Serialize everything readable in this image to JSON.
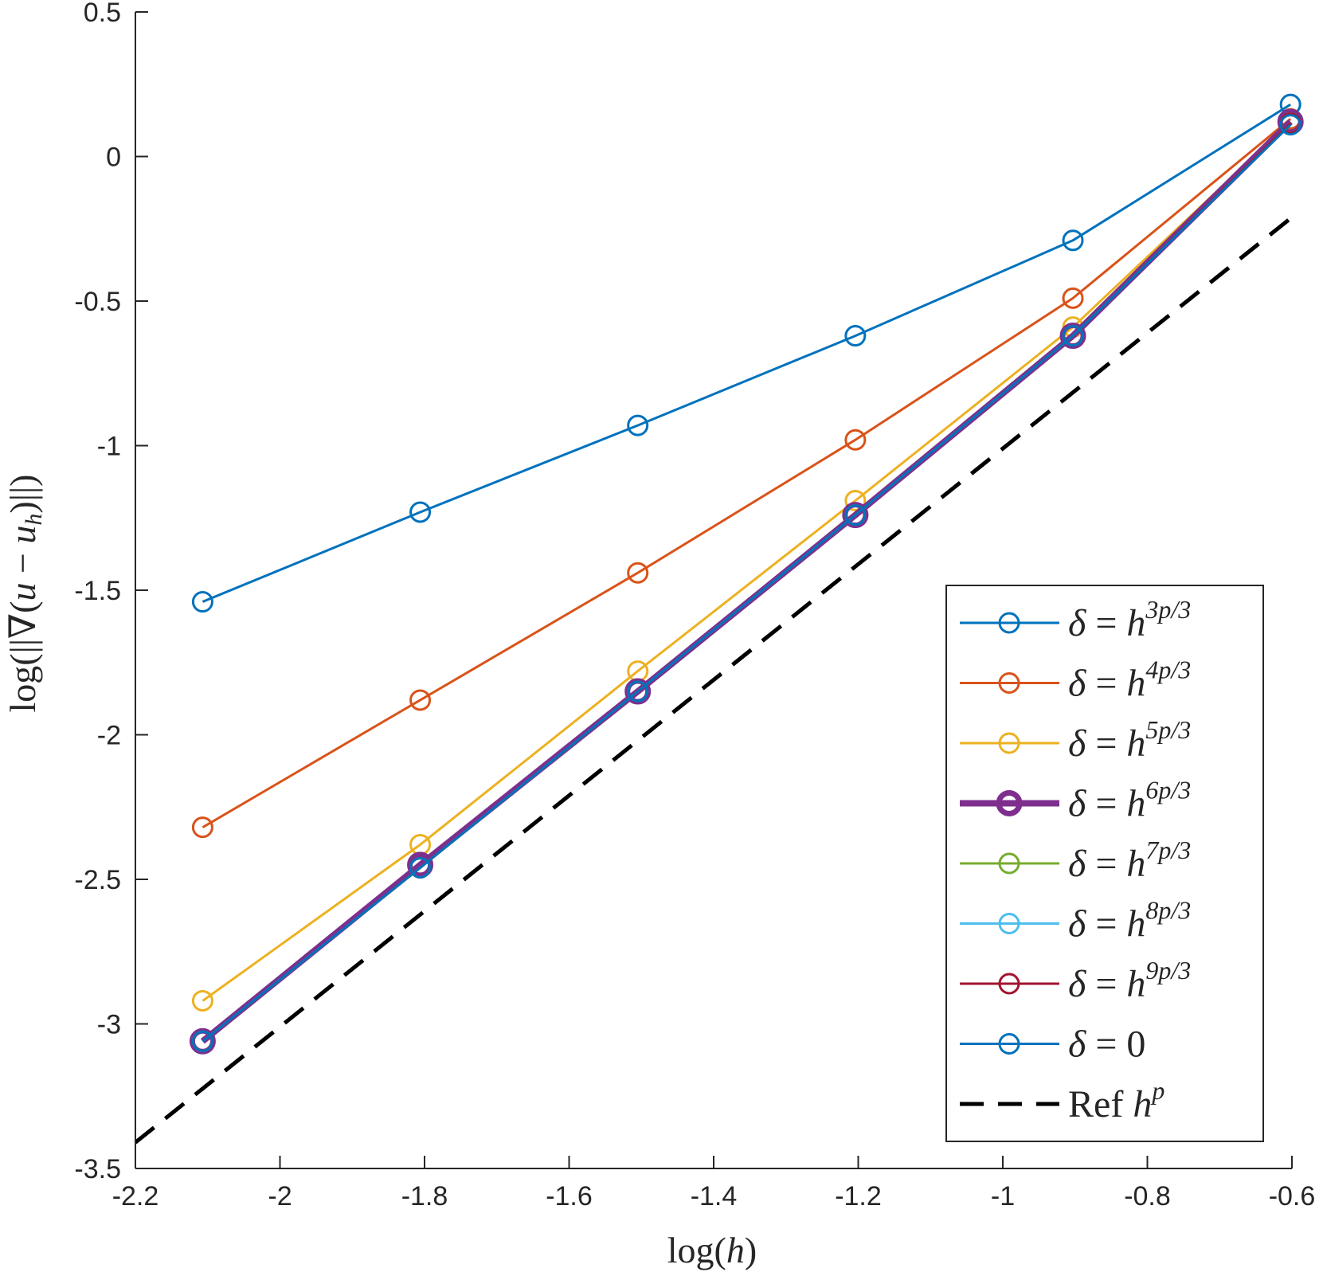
{
  "chart_data": {
    "type": "line",
    "xlabel": "log(h)",
    "ylabel": "log(||∇(u − u_h)||)",
    "xlim": [
      -2.2,
      -0.6
    ],
    "ylim": [
      -3.5,
      0.5
    ],
    "x_ticks": [
      "-2.2",
      "-2",
      "-1.8",
      "-1.6",
      "-1.4",
      "-1.2",
      "-1",
      "-0.8",
      "-0.6"
    ],
    "y_ticks": [
      "0.5",
      "0",
      "-0.5",
      "-1",
      "-1.5",
      "-2",
      "-2.5",
      "-3",
      "-3.5"
    ],
    "x": [
      -2.107,
      -1.806,
      -1.505,
      -1.204,
      -0.903,
      -0.602
    ],
    "legend_position": "bottom-right",
    "series": [
      {
        "name": "δ = h^{3p/3}",
        "symbol": "δ",
        "equals": "=",
        "base": "h",
        "exponent": "3p/3",
        "color": "#0072BD",
        "width": "normal",
        "values": [
          -1.54,
          -1.23,
          -0.93,
          -0.62,
          -0.29,
          0.18
        ]
      },
      {
        "name": "δ = h^{4p/3}",
        "symbol": "δ",
        "equals": "=",
        "base": "h",
        "exponent": "4p/3",
        "color": "#D95319",
        "width": "normal",
        "values": [
          -2.32,
          -1.88,
          -1.44,
          -0.98,
          -0.49,
          0.13
        ]
      },
      {
        "name": "δ = h^{5p/3}",
        "symbol": "δ",
        "equals": "=",
        "base": "h",
        "exponent": "5p/3",
        "color": "#EDB120",
        "width": "normal",
        "values": [
          -2.92,
          -2.38,
          -1.78,
          -1.19,
          -0.59,
          0.12
        ]
      },
      {
        "name": "δ = h^{6p/3}",
        "symbol": "δ",
        "equals": "=",
        "base": "h",
        "exponent": "6p/3",
        "color": "#7E2F8E",
        "width": "thick",
        "values": [
          -3.06,
          -2.45,
          -1.85,
          -1.24,
          -0.62,
          0.12
        ]
      },
      {
        "name": "δ = h^{7p/3}",
        "symbol": "δ",
        "equals": "=",
        "base": "h",
        "exponent": "7p/3",
        "color": "#77AC30",
        "width": "normal",
        "values": [
          -3.06,
          -2.46,
          -1.85,
          -1.24,
          -0.62,
          0.115
        ]
      },
      {
        "name": "δ = h^{8p/3}",
        "symbol": "δ",
        "equals": "=",
        "base": "h",
        "exponent": "8p/3",
        "color": "#4DBEEE",
        "width": "normal",
        "values": [
          -3.06,
          -2.46,
          -1.85,
          -1.24,
          -0.62,
          0.115
        ]
      },
      {
        "name": "δ = h^{9p/3}",
        "symbol": "δ",
        "equals": "=",
        "base": "h",
        "exponent": "9p/3",
        "color": "#A2142F",
        "width": "normal",
        "values": [
          -3.06,
          -2.46,
          -1.85,
          -1.24,
          -0.62,
          0.115
        ]
      },
      {
        "name": "δ = 0",
        "symbol": "δ",
        "equals": "=",
        "base": "0",
        "exponent": "",
        "color": "#0072BD",
        "width": "normal",
        "values": [
          -3.06,
          -2.46,
          -1.85,
          -1.24,
          -0.62,
          0.11
        ]
      }
    ],
    "reference": {
      "name": "Ref h^p",
      "label": "Ref",
      "base": "h",
      "exponent": "p",
      "color": "#000000",
      "style": "dashed",
      "x": [
        -2.2,
        -0.6
      ],
      "values": [
        -3.41,
        -0.21
      ]
    }
  }
}
